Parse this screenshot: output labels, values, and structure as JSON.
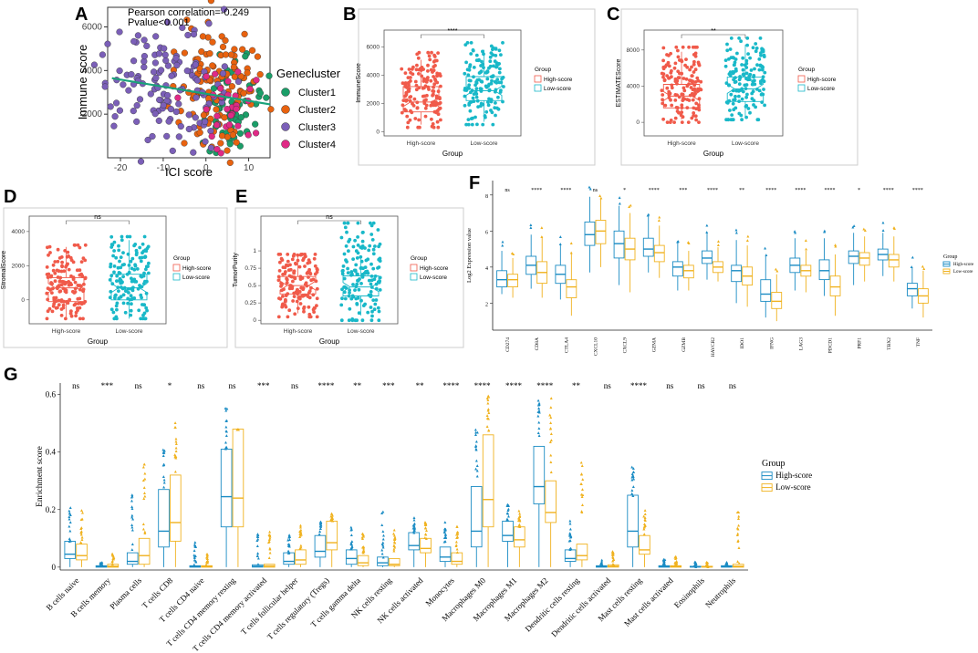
{
  "colors": {
    "cluster1": "#1a9e68",
    "cluster2": "#e8620f",
    "cluster3": "#7b5fb8",
    "cluster4": "#e02a86",
    "trend": "#1aa37a",
    "high": "#f05a4a",
    "low": "#19b8c8",
    "high_g": "#1b8cc4",
    "low_g": "#f0b21f"
  },
  "chart_data": [
    {
      "panel": "A",
      "type": "scatter",
      "annotation_lines": [
        "Pearson correlation=-0.249",
        "Pvalue<0.001"
      ],
      "xlabel": "ICI score",
      "ylabel": "Immune score",
      "xlim": [
        -23,
        15
      ],
      "ylim": [
        0,
        6900
      ],
      "xticks": [
        -20,
        -10,
        0,
        10
      ],
      "yticks": [
        2000,
        4000,
        6000
      ],
      "trend": {
        "x0": -22,
        "y0": 3650,
        "x1": 15,
        "y1": 2450
      },
      "legend_title": "Genecluster",
      "series": [
        {
          "name": "Cluster1",
          "color_key": "cluster1",
          "x_range": [
            0,
            13
          ],
          "y_range": [
            600,
            4500
          ],
          "n": 60
        },
        {
          "name": "Cluster2",
          "color_key": "cluster2",
          "x_range": [
            -6,
            10
          ],
          "y_range": [
            700,
            5800
          ],
          "n": 120
        },
        {
          "name": "Cluster3",
          "color_key": "cluster3",
          "x_range": [
            -22,
            4
          ],
          "y_range": [
            800,
            5600
          ],
          "n": 130
        },
        {
          "name": "Cluster4",
          "color_key": "cluster4",
          "x_range": [
            -2,
            12
          ],
          "y_range": [
            700,
            3800
          ],
          "n": 30
        }
      ]
    },
    {
      "panel": "B",
      "type": "boxplot",
      "ylabel": "ImmuneScore",
      "xlabel": "Group",
      "ylim": [
        -300,
        7200
      ],
      "yticks": [
        0,
        2000,
        4000,
        6000
      ],
      "categories": [
        "High-score",
        "Low-score"
      ],
      "significance": "****",
      "legend_title": "Group",
      "legend": [
        "High-score",
        "Low-score"
      ],
      "boxes": [
        {
          "min": 500,
          "q1": 1400,
          "median": 2100,
          "q3": 3200,
          "max": 5100,
          "spread_min": 300,
          "spread_max": 5600
        },
        {
          "min": 700,
          "q1": 2200,
          "median": 2900,
          "q3": 3900,
          "max": 5800,
          "spread_min": 500,
          "spread_max": 6300
        }
      ]
    },
    {
      "panel": "C",
      "type": "boxplot",
      "ylabel": "ESTIMATEScore",
      "xlabel": "Group",
      "ylim": [
        -1500,
        10200
      ],
      "yticks": [
        0,
        4000,
        8000
      ],
      "categories": [
        "High-score",
        "Low-score"
      ],
      "significance": "**",
      "legend_title": "Group",
      "legend": [
        "High-score",
        "Low-score"
      ],
      "boxes": [
        {
          "min": 300,
          "q1": 1600,
          "median": 2900,
          "q3": 4200,
          "max": 7800,
          "spread_min": 0,
          "spread_max": 8300
        },
        {
          "min": 600,
          "q1": 2300,
          "median": 3700,
          "q3": 5000,
          "max": 8600,
          "spread_min": 300,
          "spread_max": 9300
        }
      ]
    },
    {
      "panel": "D",
      "type": "boxplot",
      "ylabel": "StromalScore",
      "xlabel": "Group",
      "ylim": [
        -1400,
        4900
      ],
      "yticks": [
        0,
        2000,
        4000
      ],
      "categories": [
        "High-score",
        "Low-score"
      ],
      "significance": "ns",
      "legend_title": "Group",
      "legend": [
        "High-score",
        "Low-score"
      ],
      "boxes": [
        {
          "min": -1100,
          "q1": -100,
          "median": 700,
          "q3": 1300,
          "max": 3100,
          "spread_min": -1100,
          "spread_max": 3200
        },
        {
          "min": -1100,
          "q1": 0,
          "median": 700,
          "q3": 1500,
          "max": 3500,
          "spread_min": -1100,
          "spread_max": 3700
        }
      ]
    },
    {
      "panel": "E",
      "type": "boxplot",
      "ylabel": "TumorPurity",
      "xlabel": "Group",
      "ylim": [
        -0.05,
        1.5
      ],
      "yticks": [
        0.0,
        0.25,
        0.5,
        0.75,
        1.0
      ],
      "categories": [
        "High-score",
        "Low-score"
      ],
      "significance": "ns",
      "legend_title": "Group",
      "legend": [
        "High-score",
        "Low-score"
      ],
      "boxes": [
        {
          "min": 0.1,
          "q1": 0.38,
          "median": 0.5,
          "q3": 0.63,
          "max": 0.92,
          "spread_min": 0.05,
          "spread_max": 0.95
        },
        {
          "min": 0.07,
          "q1": 0.35,
          "median": 0.48,
          "q3": 0.64,
          "max": 0.93,
          "spread_min": 0.0,
          "spread_max": 1.4
        }
      ]
    },
    {
      "panel": "F",
      "type": "boxplot",
      "ylabel": "Log2 Expression value",
      "ylim": [
        0.5,
        8.8
      ],
      "yticks": [
        2,
        4,
        6,
        8
      ],
      "legend_title": "Group",
      "legend": [
        "High-score",
        "Low-score"
      ],
      "categories": [
        "CD274",
        "CD8A",
        "CTLA4",
        "CXCL10",
        "CXCL9",
        "GZMA",
        "GZMB",
        "HAVCR2",
        "IDO1",
        "IFNG",
        "LAG3",
        "PDCD1",
        "PRF1",
        "TBX2",
        "TNF"
      ],
      "significance": [
        "ns",
        "****",
        "****",
        "ns",
        "*",
        "****",
        "***",
        "****",
        "**",
        "****",
        "****",
        "****",
        "*",
        "****",
        "****"
      ],
      "high": [
        [
          2.5,
          2.9,
          3.3,
          3.8,
          4.9
        ],
        [
          2.8,
          3.6,
          4.1,
          4.6,
          5.8
        ],
        [
          2.2,
          3.1,
          3.6,
          4.1,
          5.3
        ],
        [
          3.7,
          5.2,
          5.8,
          6.5,
          7.9
        ],
        [
          3.0,
          4.5,
          5.3,
          6.0,
          7.4
        ],
        [
          3.7,
          4.6,
          5.0,
          5.6,
          6.8
        ],
        [
          2.7,
          3.5,
          4.0,
          4.3,
          5.4
        ],
        [
          3.3,
          4.2,
          4.5,
          4.9,
          5.9
        ],
        [
          2.0,
          3.2,
          3.8,
          4.1,
          5.5
        ],
        [
          1.2,
          2.1,
          2.5,
          3.3,
          4.6
        ],
        [
          2.7,
          3.7,
          4.1,
          4.5,
          5.6
        ],
        [
          2.4,
          3.3,
          3.8,
          4.4,
          5.6
        ],
        [
          3.0,
          4.2,
          4.6,
          4.9,
          5.9
        ],
        [
          3.5,
          4.4,
          4.7,
          5.0,
          5.9
        ],
        [
          1.7,
          2.4,
          2.8,
          3.1,
          4.0
        ]
      ],
      "low": [
        [
          2.3,
          2.9,
          3.3,
          3.6,
          4.5
        ],
        [
          2.3,
          3.1,
          3.7,
          4.3,
          5.7
        ],
        [
          1.3,
          2.3,
          2.9,
          3.3,
          4.8
        ],
        [
          4.0,
          5.3,
          6.0,
          6.6,
          7.8
        ],
        [
          2.6,
          4.4,
          5.0,
          5.6,
          7.0
        ],
        [
          3.4,
          4.3,
          4.8,
          5.2,
          6.3
        ],
        [
          2.7,
          3.4,
          3.8,
          4.1,
          4.9
        ],
        [
          3.2,
          3.7,
          4.0,
          4.3,
          5.1
        ],
        [
          1.8,
          3.0,
          3.5,
          4.0,
          5.2
        ],
        [
          1.0,
          1.7,
          2.1,
          2.6,
          3.6
        ],
        [
          2.6,
          3.5,
          3.8,
          4.1,
          4.9
        ],
        [
          1.3,
          2.4,
          2.9,
          3.5,
          4.7
        ],
        [
          3.2,
          4.1,
          4.5,
          4.8,
          5.7
        ],
        [
          3.2,
          4.0,
          4.4,
          4.7,
          5.7
        ],
        [
          1.2,
          2.0,
          2.4,
          2.8,
          3.8
        ]
      ]
    },
    {
      "panel": "G",
      "type": "boxplot",
      "ylabel": "Enrichment score",
      "ylim": [
        -0.01,
        0.64
      ],
      "yticks": [
        0.0,
        0.2,
        0.4,
        0.6
      ],
      "legend_title": "Group",
      "legend": [
        "High-score",
        "Low-score"
      ],
      "categories": [
        "B cells naive",
        "B cells memory",
        "Plasma cells",
        "T cells CD8",
        "T cells CD4 naive",
        "T cells CD4 memory resting",
        "T cells CD4 memory activated",
        "T cells follicular helper",
        "T cells regulatory (Tregs)",
        "T cells gamma delta",
        "NK cells resting",
        "NK cells activated",
        "Monocytes",
        "Macrophages M0",
        "Macrophages M1",
        "Macrophages M2",
        "Dendritic cells resting",
        "Dendritic cells activated",
        "Mast cells resting",
        "Mast cells activated",
        "Eosinophils",
        "Neutrophils"
      ],
      "significance": [
        "ns",
        "***",
        "ns",
        "*",
        "ns",
        "ns",
        "***",
        "ns",
        "****",
        "**",
        "***",
        "**",
        "****",
        "****",
        "****",
        "****",
        "**",
        "ns",
        "****",
        "ns",
        "ns",
        "ns"
      ],
      "high": [
        [
          0.0,
          0.01,
          0.03,
          0.045,
          0.09,
          0.21
        ],
        [
          0.0,
          0.0,
          0.0,
          0.002,
          0.005,
          0.02
        ],
        [
          0.0,
          0.0,
          0.01,
          0.02,
          0.05,
          0.26
        ],
        [
          0.0,
          0.025,
          0.07,
          0.125,
          0.27,
          0.42
        ],
        [
          0.0,
          0.0,
          0.0,
          0.002,
          0.005,
          0.09
        ],
        [
          0.0,
          0.06,
          0.14,
          0.245,
          0.41,
          0.56
        ],
        [
          0.0,
          0.0,
          0.0,
          0.003,
          0.008,
          0.12
        ],
        [
          0.0,
          0.0,
          0.01,
          0.02,
          0.05,
          0.12
        ],
        [
          0.0,
          0.015,
          0.035,
          0.055,
          0.11,
          0.16
        ],
        [
          0.0,
          0.0,
          0.01,
          0.03,
          0.06,
          0.15
        ],
        [
          0.0,
          0.0,
          0.005,
          0.015,
          0.035,
          0.2
        ],
        [
          0.0,
          0.04,
          0.06,
          0.075,
          0.12,
          0.18
        ],
        [
          0.0,
          0.005,
          0.02,
          0.035,
          0.07,
          0.18
        ],
        [
          0.0,
          0.03,
          0.07,
          0.125,
          0.28,
          0.48
        ],
        [
          0.0,
          0.07,
          0.09,
          0.11,
          0.16,
          0.22
        ],
        [
          0.0,
          0.18,
          0.22,
          0.28,
          0.42,
          0.59
        ],
        [
          0.0,
          0.005,
          0.02,
          0.03,
          0.06,
          0.17
        ],
        [
          0.0,
          0.0,
          0.0,
          0.002,
          0.005,
          0.03
        ],
        [
          0.0,
          0.04,
          0.07,
          0.125,
          0.25,
          0.35
        ],
        [
          0.0,
          0.0,
          0.0,
          0.002,
          0.005,
          0.03
        ],
        [
          0.0,
          0.0,
          0.0,
          0.001,
          0.003,
          0.02
        ],
        [
          0.0,
          0.0,
          0.0,
          0.002,
          0.005,
          0.02
        ]
      ],
      "low": [
        [
          0.0,
          0.01,
          0.025,
          0.04,
          0.08,
          0.2
        ],
        [
          0.0,
          0.0,
          0.0,
          0.003,
          0.01,
          0.05
        ],
        [
          0.0,
          0.005,
          0.01,
          0.04,
          0.1,
          0.37
        ],
        [
          0.0,
          0.035,
          0.09,
          0.155,
          0.32,
          0.53
        ],
        [
          0.0,
          0.0,
          0.0,
          0.002,
          0.005,
          0.05
        ],
        [
          0.0,
          0.06,
          0.14,
          0.24,
          0.48,
          0.48
        ],
        [
          0.0,
          0.0,
          0.0,
          0.004,
          0.01,
          0.14
        ],
        [
          0.0,
          0.0,
          0.01,
          0.025,
          0.06,
          0.15
        ],
        [
          0.0,
          0.04,
          0.06,
          0.085,
          0.16,
          0.19
        ],
        [
          0.0,
          0.0,
          0.005,
          0.015,
          0.04,
          0.12
        ],
        [
          0.0,
          0.0,
          0.005,
          0.01,
          0.03,
          0.14
        ],
        [
          0.0,
          0.03,
          0.05,
          0.065,
          0.1,
          0.16
        ],
        [
          0.0,
          0.005,
          0.01,
          0.02,
          0.05,
          0.16
        ],
        [
          0.0,
          0.055,
          0.14,
          0.235,
          0.46,
          0.6
        ],
        [
          0.0,
          0.055,
          0.07,
          0.095,
          0.14,
          0.2
        ],
        [
          0.0,
          0.12,
          0.155,
          0.19,
          0.3,
          0.59
        ],
        [
          0.0,
          0.01,
          0.025,
          0.04,
          0.08,
          0.37
        ],
        [
          0.0,
          0.0,
          0.0,
          0.003,
          0.008,
          0.06
        ],
        [
          0.0,
          0.03,
          0.045,
          0.06,
          0.11,
          0.2
        ],
        [
          0.0,
          0.0,
          0.0,
          0.002,
          0.005,
          0.04
        ],
        [
          0.0,
          0.0,
          0.0,
          0.001,
          0.003,
          0.02
        ],
        [
          0.0,
          0.0,
          0.0,
          0.003,
          0.01,
          0.2
        ]
      ]
    }
  ]
}
